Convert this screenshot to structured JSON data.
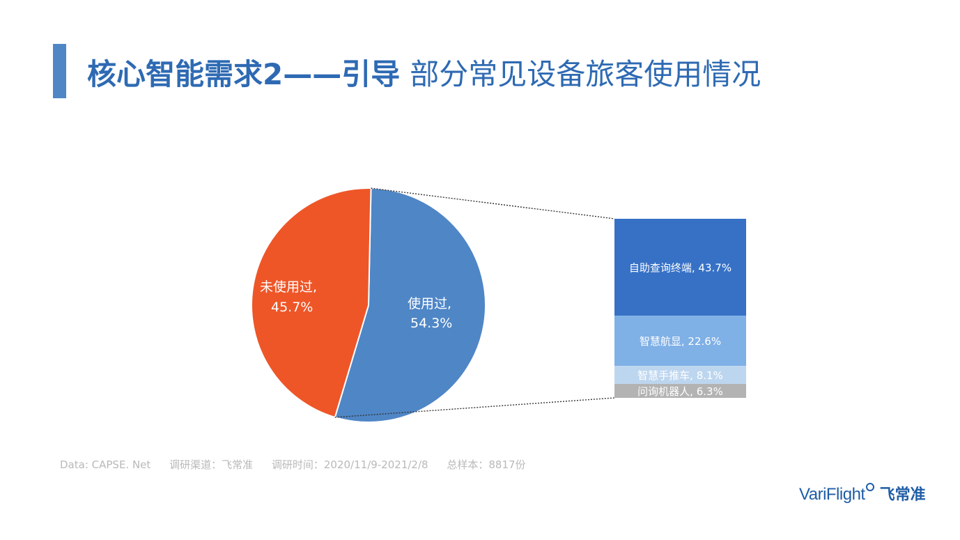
{
  "title": {
    "bold": "核心智能需求2——引导",
    "normal": "部分常见设备旅客使用情况",
    "accent_color": "#2e6ab3",
    "bar_color": "#4f86c6"
  },
  "chart_data": {
    "type": "bar-of-pie",
    "pie": {
      "slices": [
        {
          "label": "使用过,",
          "value_label": "54.3%",
          "value": 54.3,
          "color": "#4f86c6"
        },
        {
          "label": "未使用过,",
          "value_label": "45.7%",
          "value": 45.7,
          "color": "#ee5628"
        }
      ]
    },
    "bar": {
      "type": "stacked-bar",
      "segments": [
        {
          "label": "自助查询终端, 43.7%",
          "value": 43.7,
          "color": "#3671c6"
        },
        {
          "label": "智慧航显, 22.6%",
          "value": 22.6,
          "color": "#7fb0e6"
        },
        {
          "label": "智慧手推车, 8.1%",
          "value": 8.1,
          "color": "#bdd6ef"
        },
        {
          "label": "问询机器人, 6.3%",
          "value": 6.3,
          "color": "#b3b3b3"
        }
      ]
    }
  },
  "footer": {
    "source": "Data: CAPSE. Net",
    "channel": "调研渠道：飞常准",
    "period": "调研时间：2020/11/9-2021/2/8",
    "sample": "总样本：8817份"
  },
  "logo": {
    "brand": "VariFlight",
    "cn": "飞常准"
  }
}
